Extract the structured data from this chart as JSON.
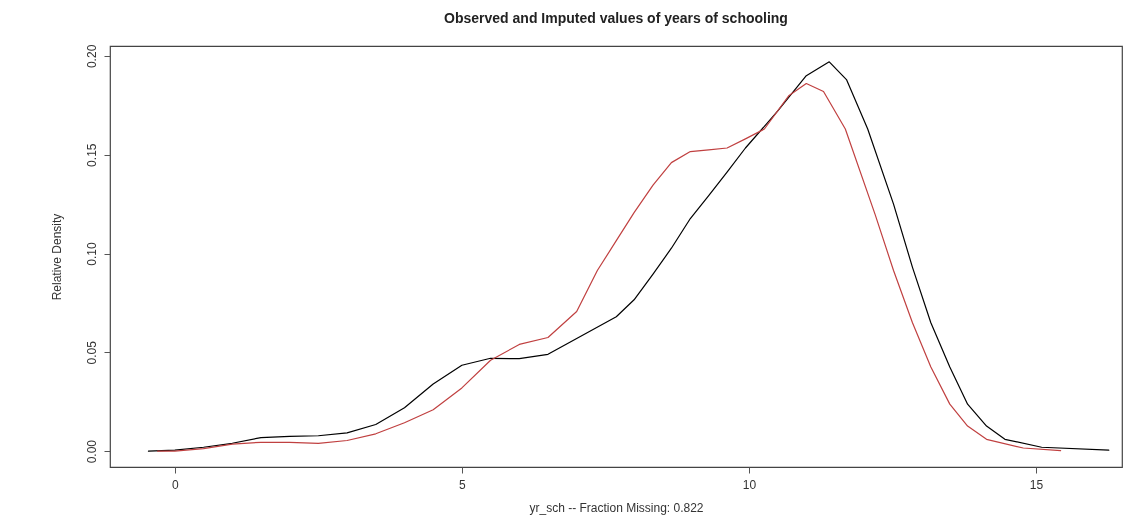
{
  "chart_data": {
    "type": "line",
    "title": "Observed and Imputed values of years of schooling",
    "xlabel": "yr_sch  --  Fraction Missing: 0.822",
    "ylabel": "Relative Density",
    "xlim": [
      -1.13,
      16.5
    ],
    "ylim": [
      -0.008,
      0.205
    ],
    "xticks": [
      0,
      5,
      10,
      15
    ],
    "yticks": [
      {
        "value": 0,
        "label": "0.00"
      },
      {
        "value": 0.05,
        "label": "0.05"
      },
      {
        "value": 0.1,
        "label": "0.10"
      },
      {
        "value": 0.15,
        "label": "0.15"
      },
      {
        "value": 0.2,
        "label": "0.20"
      }
    ],
    "grid": false,
    "legend": false,
    "marker": "none",
    "line_style": "solid",
    "series": [
      {
        "color": "#000000",
        "x": [
          -0.46,
          0,
          0.5,
          1,
          1.5,
          2,
          2.5,
          3,
          3.5,
          4,
          4.5,
          5,
          5.5,
          6,
          6.5,
          7,
          7.69,
          8.0,
          8.33,
          8.65,
          8.98,
          9.3,
          9.62,
          9.94,
          10.5,
          11.0,
          11.4,
          11.7,
          12.07,
          12.52,
          12.85,
          13.17,
          13.5,
          13.81,
          14.14,
          14.46,
          15.1,
          16.27
        ],
        "values": [
          0,
          0.0005,
          0.002,
          0.004,
          0.0069,
          0.0075,
          0.0078,
          0.0093,
          0.0135,
          0.022,
          0.034,
          0.0435,
          0.047,
          0.0468,
          0.049,
          0.057,
          0.068,
          0.0766,
          0.0896,
          0.1027,
          0.1177,
          0.1293,
          0.1412,
          0.1534,
          0.172,
          0.19,
          0.197,
          0.188,
          0.163,
          0.125,
          0.093,
          0.065,
          0.0426,
          0.0238,
          0.0127,
          0.006,
          0.002,
          0.0005
        ]
      },
      {
        "color": "#c04040",
        "x": [
          -0.3,
          0,
          0.5,
          1,
          1.5,
          2,
          2.5,
          3,
          3.5,
          4,
          4.5,
          5,
          5.5,
          6,
          6.5,
          7,
          7.36,
          7.69,
          8.0,
          8.33,
          8.65,
          8.98,
          9.3,
          9.62,
          9.94,
          10.27,
          10.7,
          11.0,
          11.3,
          11.68,
          12.2,
          12.52,
          12.85,
          13.17,
          13.5,
          13.81,
          14.14,
          14.78,
          15.43
        ],
        "values": [
          0,
          0,
          0.0013,
          0.0036,
          0.0045,
          0.0045,
          0.004,
          0.0054,
          0.0088,
          0.0144,
          0.021,
          0.032,
          0.046,
          0.054,
          0.0575,
          0.0707,
          0.0914,
          0.1065,
          0.1207,
          0.1346,
          0.146,
          0.1516,
          0.1524,
          0.1534,
          0.158,
          0.163,
          0.18,
          0.186,
          0.182,
          0.163,
          0.1197,
          0.0914,
          0.065,
          0.0426,
          0.0238,
          0.0127,
          0.006,
          0.0016,
          0.0003
        ]
      }
    ]
  }
}
